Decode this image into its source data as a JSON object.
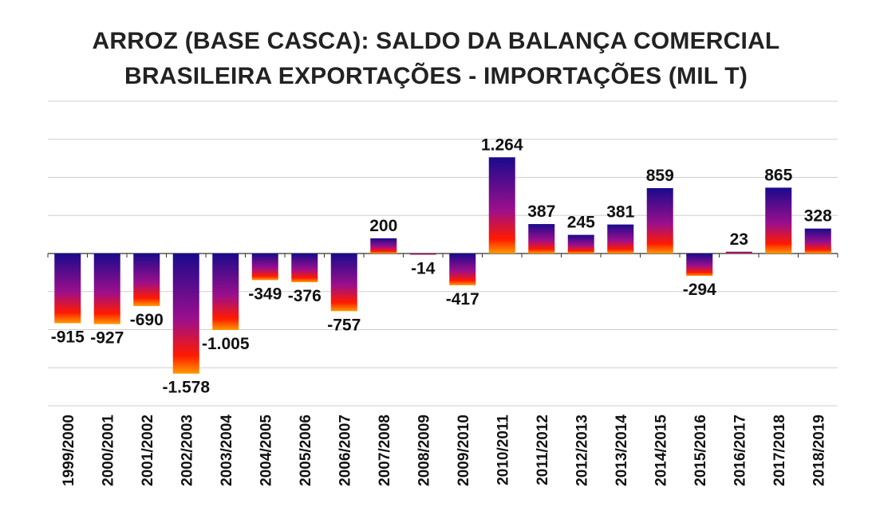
{
  "chart_data": {
    "type": "bar",
    "title": "ARROZ (BASE CASCA): SALDO DA BALANÇA COMERCIAL",
    "subtitle": "BRASILEIRA EXPORTAÇÕES - IMPORTAÇÕES (MIL T)",
    "xlabel": "",
    "ylabel": "",
    "ylim": [
      -2000,
      2000
    ],
    "grid": true,
    "gradient_colors": {
      "top": "#1a0a8c",
      "middle": "#b0108a",
      "bottom": "#ff2000",
      "edge": "#ffa500"
    },
    "categories": [
      "1999/2000",
      "2000/2001",
      "2001/2002",
      "2002/2003",
      "2003/2004",
      "2004/2005",
      "2005/2006",
      "2006/2007",
      "2007/2008",
      "2008/2009",
      "2009/2010",
      "2010/2011",
      "2011/2012",
      "2012/2013",
      "2013/2014",
      "2014/2015",
      "2015/2016",
      "2016/2017",
      "2017/2018",
      "2018/2019"
    ],
    "values": [
      -915,
      -927,
      -690,
      -1578,
      -1005,
      -349,
      -376,
      -757,
      200,
      -14,
      -417,
      1264,
      387,
      245,
      381,
      859,
      -294,
      23,
      865,
      328
    ],
    "data_labels": [
      "-915",
      "-927",
      "-690",
      "-1.578",
      "-1.005",
      "-349",
      "-376",
      "-757",
      "200",
      "-14",
      "-417",
      "1.264",
      "387",
      "245",
      "381",
      "859",
      "-294",
      "23",
      "865",
      "328"
    ]
  }
}
